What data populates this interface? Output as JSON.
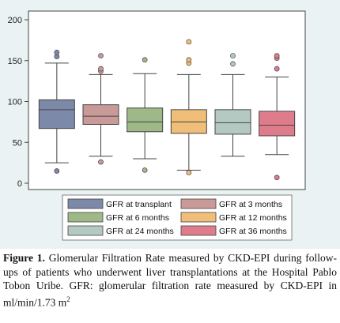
{
  "chart_data": {
    "type": "box",
    "ylim": [
      0,
      200
    ],
    "yticks": [
      0,
      50,
      100,
      150,
      200
    ],
    "grid": false,
    "legend_position": "bottom",
    "series": [
      {
        "name": "GFR at transplant",
        "color": "#7d89a8",
        "whisker_low": 25,
        "q1": 67,
        "median": 90,
        "q3": 102,
        "whisker_high": 147,
        "outliers": [
          15,
          155,
          160
        ]
      },
      {
        "name": "GFR at 3 months",
        "color": "#c99a98",
        "whisker_low": 33,
        "q1": 72,
        "median": 82,
        "q3": 96,
        "whisker_high": 133,
        "outliers": [
          26,
          137,
          140,
          156
        ]
      },
      {
        "name": "GFR at 6 months",
        "color": "#9fb887",
        "whisker_low": 30,
        "q1": 63,
        "median": 75,
        "q3": 92,
        "whisker_high": 134,
        "outliers": [
          16,
          151
        ]
      },
      {
        "name": "GFR at 12 months",
        "color": "#f0be78",
        "whisker_low": 16,
        "q1": 61,
        "median": 75,
        "q3": 90,
        "whisker_high": 133,
        "outliers": [
          13,
          147,
          151,
          173
        ]
      },
      {
        "name": "GFR at 24 months",
        "color": "#b3c9c1",
        "whisker_low": 33,
        "q1": 60,
        "median": 74,
        "q3": 90,
        "whisker_high": 133,
        "outliers": [
          146,
          156
        ]
      },
      {
        "name": "GFR at 36 months",
        "color": "#df7c8c",
        "whisker_low": 35,
        "q1": 58,
        "median": 71,
        "q3": 88,
        "whisker_high": 130,
        "outliers": [
          7,
          140,
          153,
          156
        ]
      }
    ]
  },
  "caption": {
    "label": "Figure 1.",
    "text": " Glomerular Filtration Rate measured by CKD-EPI during follow-ups of patients who underwent liver transplantations at the Hospital Pablo Tobon Uribe. GFR: glomerular filtration rate measured by CKD-EPI in ml/min/1.73 m",
    "superscript": "2"
  },
  "colors": {
    "panel_background": "#eaf2f3",
    "plot_background": "#ffffff",
    "outline": "#444444"
  }
}
